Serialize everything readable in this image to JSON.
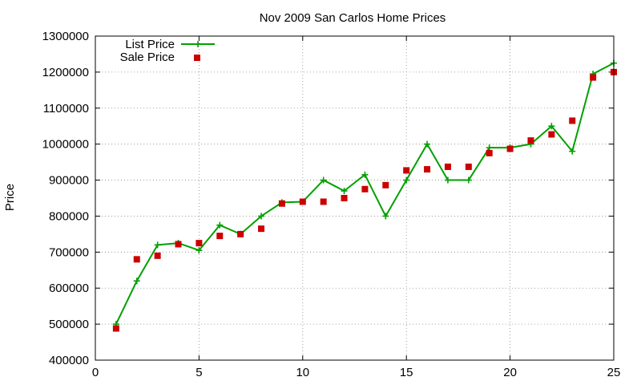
{
  "chart_data": {
    "type": "line",
    "title": "Nov 2009 San Carlos Home Prices",
    "xlabel": "",
    "ylabel": "Price",
    "xlim": [
      0,
      25
    ],
    "ylim": [
      400000,
      1300000
    ],
    "xticks": [
      0,
      5,
      10,
      15,
      20,
      25
    ],
    "yticks": [
      400000,
      500000,
      600000,
      700000,
      800000,
      900000,
      1000000,
      1100000,
      1200000,
      1300000
    ],
    "grid": true,
    "legend_position": "top-left",
    "x": [
      1,
      2,
      3,
      4,
      5,
      6,
      7,
      8,
      9,
      10,
      11,
      12,
      13,
      14,
      15,
      16,
      17,
      18,
      19,
      20,
      21,
      22,
      23,
      24,
      25
    ],
    "series": [
      {
        "name": "List Price",
        "style": "line-plus",
        "color": "#00a000",
        "values": [
          500000,
          620000,
          720000,
          725000,
          705000,
          775000,
          750000,
          800000,
          838000,
          840000,
          900000,
          870000,
          915000,
          800000,
          900000,
          1000000,
          900000,
          900000,
          990000,
          990000,
          1000000,
          1050000,
          980000,
          1195000,
          1225000
        ]
      },
      {
        "name": "Sale Price",
        "style": "square",
        "color": "#cc0000",
        "values": [
          488000,
          680000,
          690000,
          722000,
          725000,
          745000,
          750000,
          765000,
          835000,
          840000,
          840000,
          850000,
          875000,
          886000,
          927000,
          930000,
          937000,
          937000,
          975000,
          987000,
          1010000,
          1027000,
          1065000,
          1185000,
          1200000
        ]
      }
    ]
  }
}
